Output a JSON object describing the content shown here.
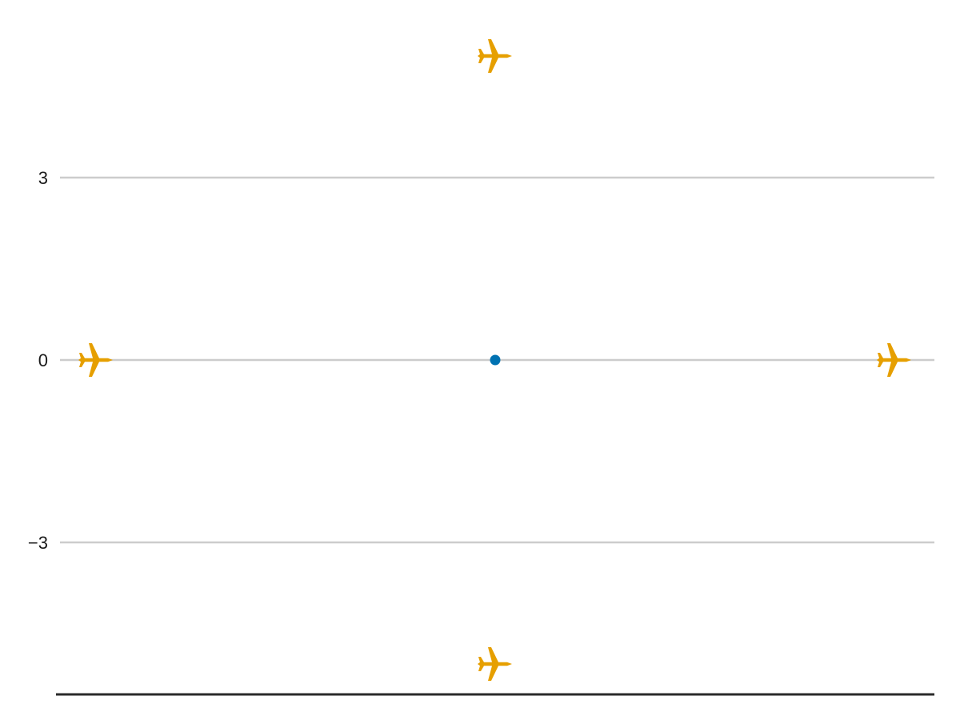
{
  "chart_data": {
    "type": "scatter",
    "title": "",
    "xlabel": "",
    "ylabel": "",
    "xlim": [
      -5,
      5
    ],
    "ylim": [
      -5.3,
      5.3
    ],
    "grid": {
      "x": false,
      "y": true
    },
    "y_ticks": [
      {
        "value": 3,
        "label": "3"
      },
      {
        "value": 0,
        "label": "0"
      },
      {
        "value": -3,
        "label": "−3"
      }
    ],
    "series": [
      {
        "marker": "dot",
        "color": "#0072B2",
        "points": [
          {
            "x": 0,
            "y": 0
          }
        ]
      },
      {
        "marker": "airplane-icon",
        "color": "#E69F00",
        "points": [
          {
            "x": 0,
            "y": 5
          },
          {
            "x": -5,
            "y": 0
          },
          {
            "x": 5,
            "y": 0
          },
          {
            "x": 0,
            "y": -5
          }
        ]
      }
    ]
  }
}
